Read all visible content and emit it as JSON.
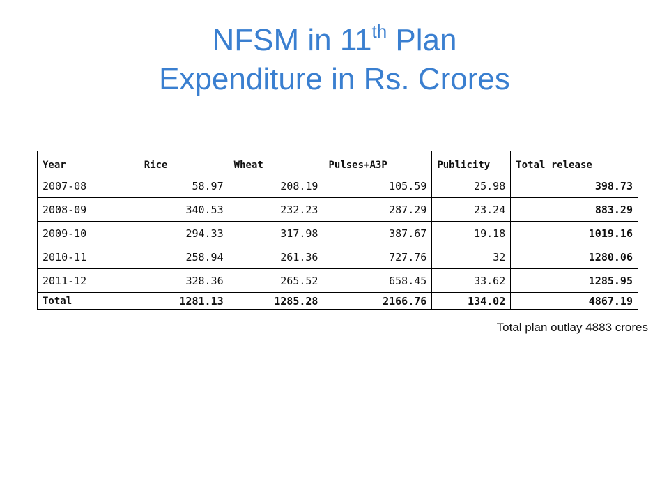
{
  "title": {
    "line1_prefix": "NFSM in 11",
    "line1_sup": "th",
    "line1_suffix": " Plan",
    "line2": "Expenditure in Rs. Crores"
  },
  "table": {
    "headers": [
      "Year",
      "Rice",
      "Wheat",
      "Pulses+A3P",
      "Publicity",
      "Total release"
    ],
    "rows": [
      [
        "2007-08",
        "58.97",
        "208.19",
        "105.59",
        "25.98",
        "398.73"
      ],
      [
        "2008-09",
        "340.53",
        "232.23",
        "287.29",
        "23.24",
        "883.29"
      ],
      [
        "2009-10",
        "294.33",
        "317.98",
        "387.67",
        "19.18",
        "1019.16"
      ],
      [
        "2010-11",
        "258.94",
        "261.36",
        "727.76",
        "32",
        "1280.06"
      ],
      [
        "2011-12",
        "328.36",
        "265.52",
        "658.45",
        "33.62",
        "1285.95"
      ]
    ],
    "total": [
      "Total",
      "1281.13",
      "1285.28",
      "2166.76",
      "134.02",
      "4867.19"
    ]
  },
  "note": "Total plan outlay 4883 crores"
}
